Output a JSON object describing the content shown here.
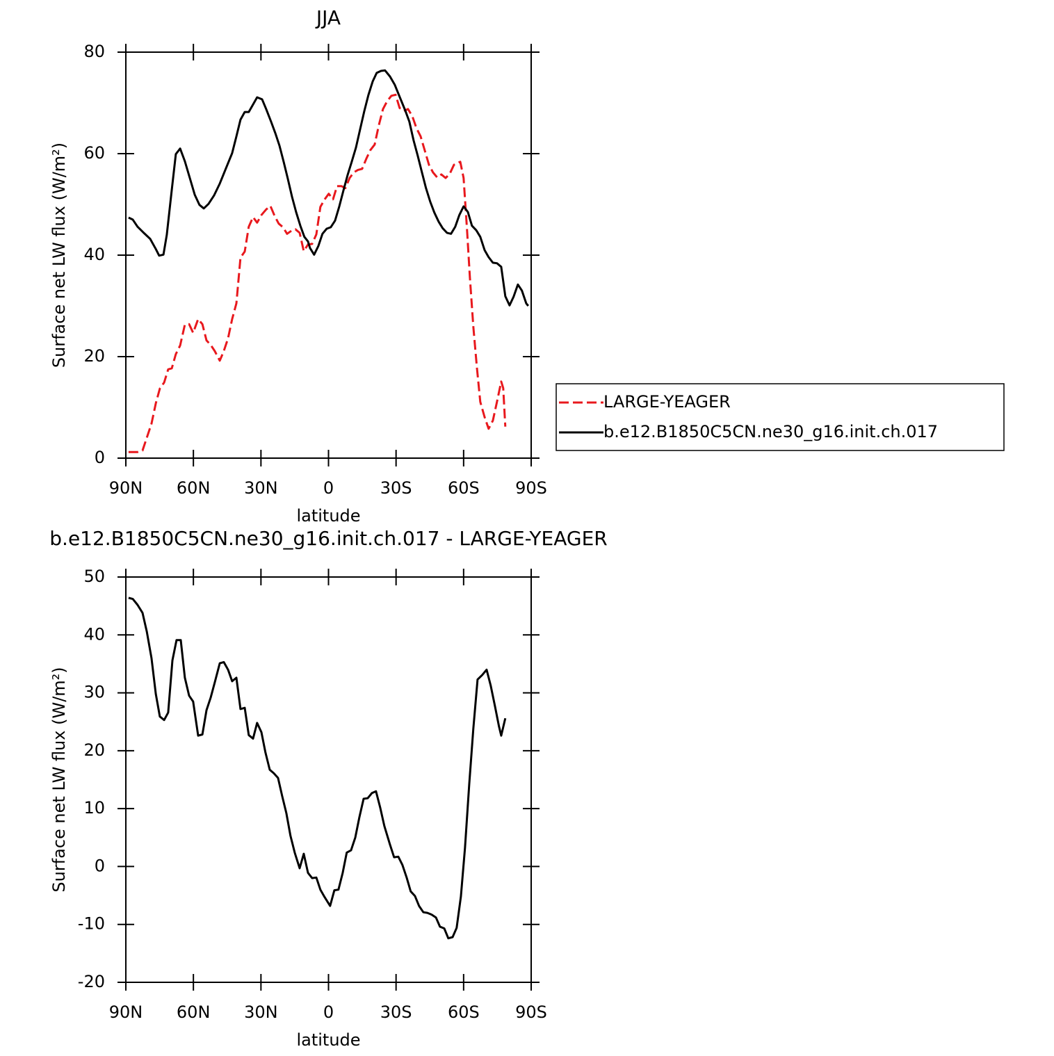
{
  "chart_data": [
    {
      "type": "line",
      "title": "JJA",
      "x_label": "latitude",
      "y_label": "Surface net LW flux (W/m²)",
      "xlim": [
        90,
        -90
      ],
      "xticks": [
        {
          "value": 90,
          "label": "90N"
        },
        {
          "value": 60,
          "label": "60N"
        },
        {
          "value": 30,
          "label": "30N"
        },
        0,
        {
          "value": -30,
          "label": "30S"
        },
        {
          "value": -60,
          "label": "60S"
        },
        {
          "value": -90,
          "label": "90S"
        }
      ],
      "ylim": [
        0,
        80
      ],
      "yticks": [
        0,
        20,
        40,
        60,
        80
      ],
      "legend": "right",
      "series": [
        {
          "name": "LARGE-YEAGER",
          "color": "#e8181d",
          "style": "dashed",
          "x": [
            88.8,
            86.9,
            84.8,
            82.6,
            80.7,
            78.6,
            76.7,
            74.9,
            73.0,
            71.2,
            69.6,
            67.8,
            65.9,
            63.8,
            61.9,
            60.1,
            57.9,
            56.0,
            54.2,
            52.3,
            50.5,
            48.3,
            46.5,
            44.6,
            42.8,
            40.9,
            39.1,
            37.2,
            35.4,
            33.5,
            31.7,
            29.8,
            27.7,
            25.8,
            24.0,
            22.1,
            20.2,
            18.4,
            16.5,
            14.7,
            12.8,
            11.0,
            9.1,
            7.3,
            5.4,
            3.6,
            1.7,
            -0.1,
            -2.0,
            -3.8,
            -5.7,
            -7.5,
            -9.4,
            -11.2,
            -13.1,
            -14.9,
            -16.8,
            -18.6,
            -20.5,
            -22.3,
            -24.2,
            -26.0,
            -27.9,
            -29.8,
            -31.6,
            -33.5,
            -35.3,
            -37.2,
            -39.0,
            -40.9,
            -42.7,
            -44.6,
            -46.4,
            -48.3,
            -50.1,
            -52.0,
            -53.8,
            -55.7,
            -57.5,
            -58.5,
            -60.0,
            -61.5,
            -62.8,
            -64.3,
            -65.9,
            -67.4,
            -69.3,
            -71.1,
            -73.0,
            -74.8,
            -76.7,
            -77.6,
            -78.5
          ],
          "values": [
            1.2,
            1.2,
            1.2,
            1.5,
            4.0,
            6.8,
            10.8,
            13.7,
            14.9,
            17.5,
            17.7,
            20.5,
            22.2,
            26.3,
            26.4,
            24.7,
            27.4,
            26.4,
            23.2,
            22.3,
            21.1,
            19.2,
            21.1,
            23.6,
            27.4,
            30.5,
            39.5,
            40.7,
            45.6,
            47.5,
            46.4,
            47.9,
            49.0,
            49.7,
            47.8,
            46.2,
            45.5,
            44.2,
            44.8,
            45.1,
            44.4,
            40.8,
            42.1,
            42.2,
            44.1,
            49.5,
            51.0,
            52.1,
            51.0,
            53.6,
            53.6,
            53.2,
            55.2,
            56.3,
            56.8,
            57.0,
            59.0,
            60.7,
            61.8,
            65.5,
            68.8,
            70.3,
            71.4,
            71.6,
            69.0,
            68.4,
            68.8,
            67.4,
            65.1,
            63.4,
            60.7,
            57.8,
            56.3,
            55.3,
            55.9,
            55.2,
            56.0,
            57.8,
            58.2,
            58.4,
            55.2,
            45.1,
            35.5,
            25.9,
            17.9,
            11.1,
            8.1,
            5.8,
            7.4,
            11.1,
            15.1,
            13.8,
            6.2
          ]
        },
        {
          "name": "b.e12.B1850C5CN.ne30_g16.init.ch.017",
          "color": "#000000",
          "style": "solid",
          "x": [
            88.8,
            86.9,
            84.8,
            82.3,
            79.2,
            76.7,
            75.2,
            73.3,
            71.8,
            69.6,
            67.8,
            65.9,
            63.8,
            61.6,
            59.4,
            57.3,
            55.4,
            53.3,
            50.8,
            48.3,
            45.9,
            42.8,
            40.9,
            39.1,
            37.2,
            35.4,
            33.5,
            31.7,
            29.5,
            27.7,
            25.5,
            23.6,
            21.8,
            19.9,
            18.1,
            16.2,
            14.4,
            12.5,
            10.7,
            9.1,
            8.2,
            6.4,
            4.5,
            2.7,
            0.8,
            -1.0,
            -2.9,
            -4.8,
            -6.6,
            -8.5,
            -10.3,
            -12.2,
            -14.0,
            -15.9,
            -17.7,
            -19.6,
            -21.4,
            -23.3,
            -25.1,
            -27.3,
            -29.4,
            -31.6,
            -34.1,
            -35.9,
            -37.8,
            -39.6,
            -41.5,
            -43.3,
            -45.2,
            -47.0,
            -48.9,
            -50.7,
            -52.6,
            -54.4,
            -56.3,
            -58.1,
            -60.0,
            -61.9,
            -63.7,
            -65.6,
            -67.4,
            -69.3,
            -71.1,
            -73.0,
            -74.8,
            -76.7,
            -78.5,
            -80.4,
            -82.2,
            -84.1,
            -85.9,
            -87.8,
            -88.7
          ],
          "values": [
            47.4,
            47.0,
            45.6,
            44.5,
            43.2,
            41.2,
            39.9,
            40.1,
            44.0,
            52.9,
            59.9,
            61.0,
            58.5,
            55.2,
            51.9,
            49.9,
            49.2,
            50.1,
            51.8,
            54.1,
            56.7,
            60.1,
            63.4,
            66.7,
            68.2,
            68.2,
            69.7,
            71.1,
            70.7,
            68.8,
            66.3,
            64.0,
            61.6,
            58.4,
            55.1,
            51.5,
            48.5,
            45.8,
            43.6,
            42.7,
            41.4,
            40.1,
            41.8,
            44.2,
            45.2,
            45.5,
            46.8,
            49.6,
            52.7,
            55.8,
            58.4,
            61.2,
            64.7,
            68.4,
            71.5,
            74.2,
            75.9,
            76.3,
            76.4,
            75.2,
            73.6,
            71.2,
            68.5,
            66.3,
            62.6,
            59.6,
            56.3,
            53.2,
            50.5,
            48.4,
            46.6,
            45.3,
            44.4,
            44.2,
            45.6,
            47.9,
            49.6,
            48.5,
            45.8,
            44.9,
            43.6,
            41.0,
            39.6,
            38.5,
            38.4,
            37.7,
            31.9,
            30.1,
            31.8,
            34.2,
            33.0,
            30.5,
            30.0
          ]
        }
      ]
    },
    {
      "type": "line",
      "title": "b.e12.B1850C5CN.ne30_g16.init.ch.017 - LARGE-YEAGER",
      "x_label": "latitude",
      "y_label": "Surface net LW flux (W/m²)",
      "xlim": [
        90,
        -90
      ],
      "xticks": [
        {
          "value": 90,
          "label": "90N"
        },
        {
          "value": 60,
          "label": "60N"
        },
        {
          "value": 30,
          "label": "30N"
        },
        0,
        {
          "value": -30,
          "label": "30S"
        },
        {
          "value": -60,
          "label": "60S"
        },
        {
          "value": -90,
          "label": "90S"
        }
      ],
      "ylim": [
        -20,
        50
      ],
      "yticks": [
        -20,
        -10,
        0,
        10,
        20,
        30,
        40,
        50
      ],
      "series": [
        {
          "color": "#000000",
          "style": "solid",
          "x": [
            88.8,
            86.9,
            84.8,
            82.6,
            80.7,
            78.6,
            76.7,
            74.9,
            73.0,
            71.2,
            69.3,
            67.5,
            65.6,
            63.8,
            61.9,
            60.1,
            57.9,
            56.0,
            54.2,
            52.3,
            50.5,
            48.3,
            46.5,
            44.6,
            42.8,
            40.9,
            39.1,
            37.2,
            35.4,
            33.5,
            31.7,
            29.8,
            28.0,
            26.1,
            24.3,
            22.4,
            20.6,
            18.7,
            16.9,
            15.0,
            12.8,
            11.0,
            9.1,
            7.3,
            5.4,
            3.6,
            1.7,
            -0.7,
            -2.6,
            -4.4,
            -6.3,
            -8.1,
            -10.0,
            -11.9,
            -13.7,
            -15.6,
            -17.4,
            -19.3,
            -21.1,
            -23.0,
            -24.8,
            -27.3,
            -29.1,
            -31.0,
            -32.8,
            -34.7,
            -36.5,
            -38.4,
            -40.2,
            -42.1,
            -43.9,
            -45.8,
            -47.7,
            -49.5,
            -51.4,
            -53.2,
            -55.1,
            -56.9,
            -58.8,
            -60.6,
            -62.5,
            -64.3,
            -66.2,
            -68.3,
            -70.2,
            -72.0,
            -73.9,
            -75.7,
            -76.7,
            -78.5
          ],
          "values": [
            46.4,
            46.2,
            45.2,
            43.8,
            40.6,
            36.0,
            29.8,
            25.9,
            25.3,
            26.6,
            35.6,
            39.1,
            39.1,
            32.6,
            29.5,
            28.5,
            22.6,
            22.8,
            27.0,
            29.2,
            31.8,
            35.1,
            35.3,
            34.0,
            32.0,
            32.6,
            27.2,
            27.4,
            22.7,
            22.1,
            24.8,
            23.2,
            19.7,
            16.7,
            16.1,
            15.3,
            12.2,
            9.2,
            5.3,
            2.4,
            -0.3,
            2.2,
            -1.1,
            -2.0,
            -1.9,
            -4.0,
            -5.3,
            -6.8,
            -4.1,
            -4.0,
            -1.1,
            2.4,
            2.8,
            5.0,
            8.5,
            11.7,
            11.8,
            12.7,
            13.0,
            10.1,
            7.0,
            3.8,
            1.6,
            1.7,
            0.3,
            -1.9,
            -4.3,
            -5.1,
            -6.8,
            -7.9,
            -8.0,
            -8.3,
            -8.8,
            -10.4,
            -10.7,
            -12.4,
            -12.2,
            -10.6,
            -5.2,
            3.2,
            14.2,
            23.8,
            32.3,
            33.1,
            34.0,
            31.3,
            27.7,
            24.2,
            22.6,
            25.6
          ]
        }
      ]
    }
  ]
}
